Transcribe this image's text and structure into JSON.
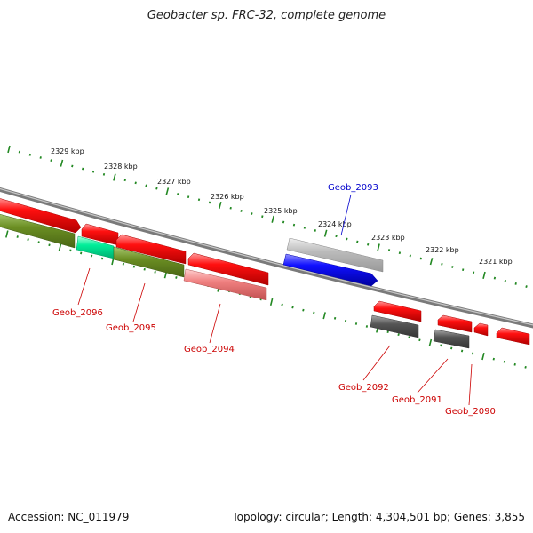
{
  "title": "Geobacter sp. FRC-32, complete genome",
  "footer": {
    "accession": "Accession: NC_011979",
    "stats": "Topology: circular; Length: 4,304,501 bp; Genes: 3,855"
  },
  "colors": {
    "axis": "#888888",
    "tick": "#228822",
    "red_gene": "#ee0000",
    "red_label": "#cc0000",
    "blue_gene": "#0000ee",
    "blue_label": "#0000cc",
    "olive_gene": "#6b8e23",
    "teal_gene": "#00ee99",
    "pink_gene": "#f08080",
    "dark_gray_gene": "#555555",
    "light_gray_gene": "#bbbbbb"
  },
  "chart_data": {
    "type": "genome-map",
    "scale_unit": "kbp",
    "scale_ticks": [
      "2329 kbp",
      "2328 kbp",
      "2327 kbp",
      "2326 kbp",
      "2325 kbp",
      "2324 kbp",
      "2323 kbp",
      "2322 kbp",
      "2321 kbp"
    ],
    "labeled_genes": [
      {
        "name": "Geob_2096",
        "color": "red"
      },
      {
        "name": "Geob_2095",
        "color": "red"
      },
      {
        "name": "Geob_2094",
        "color": "red"
      },
      {
        "name": "Geob_2093",
        "color": "blue"
      },
      {
        "name": "Geob_2092",
        "color": "red"
      },
      {
        "name": "Geob_2091",
        "color": "red"
      },
      {
        "name": "Geob_2090",
        "color": "red"
      }
    ]
  }
}
